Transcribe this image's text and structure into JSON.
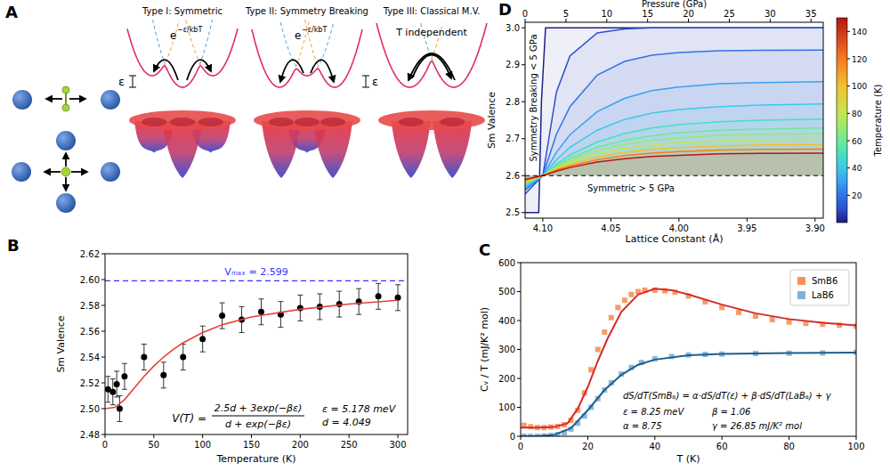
{
  "diagram": {
    "panel": "A",
    "wells": [
      {
        "title": "Type I: Symmetric",
        "energy_label": "ε",
        "rate": {
          "base": "e",
          "exponent": "−ε/kbT"
        }
      },
      {
        "title": "Type II: Symmetry Breaking",
        "energy_label": "ε",
        "rate": {
          "base": "e",
          "exponent": "−ε/kbT"
        }
      },
      {
        "title": "Type III: Classical M.V.",
        "note": "T independent"
      }
    ]
  },
  "chart_data": [
    {
      "panel": "B",
      "type": "scatter",
      "x_label": "Temperature (K)",
      "y_label": "Sm Valence",
      "xlim": [
        0,
        310
      ],
      "ylim": [
        2.48,
        2.62
      ],
      "xticks": [
        0,
        50,
        100,
        150,
        200,
        250,
        300
      ],
      "yticks": [
        2.48,
        {
          "value": 2.5,
          "label": "2.50"
        },
        2.52,
        2.54,
        2.56,
        2.58,
        {
          "value": 2.6,
          "label": "2.60"
        },
        2.62
      ],
      "series": [
        {
          "type": "scatter",
          "marker": "circle",
          "color": "#000000",
          "x": [
            3,
            8,
            12,
            15,
            20,
            40,
            60,
            80,
            100,
            120,
            140,
            160,
            180,
            200,
            220,
            240,
            260,
            280,
            300
          ],
          "values": [
            2.515,
            2.513,
            2.519,
            2.5,
            2.525,
            2.54,
            2.526,
            2.54,
            2.554,
            2.572,
            2.569,
            2.575,
            2.573,
            2.578,
            2.579,
            2.581,
            2.583,
            2.587,
            2.586
          ],
          "errors": [
            0.01,
            0.01,
            0.01,
            0.01,
            0.01,
            0.01,
            0.01,
            0.01,
            0.01,
            0.01,
            0.01,
            0.01,
            0.01,
            0.01,
            0.01,
            0.01,
            0.01,
            0.01,
            0.01
          ]
        },
        {
          "type": "line",
          "color": "#e8413a",
          "x": [
            0,
            10,
            20,
            30,
            40,
            50,
            60,
            70,
            80,
            100,
            120,
            150,
            200,
            250,
            300
          ],
          "values": [
            2.5,
            2.501,
            2.507,
            2.516,
            2.525,
            2.533,
            2.54,
            2.546,
            2.551,
            2.559,
            2.565,
            2.571,
            2.577,
            2.581,
            2.584
          ]
        }
      ],
      "reference_line": {
        "value": 2.599,
        "label": "Vₘₐₓ = 2.599",
        "color": "#3333ff",
        "line_style": "dashed"
      },
      "formula": {
        "lhs": "V(T) =",
        "numerator": "2.5d + 3exp(−βε)",
        "denominator": "d + exp(−βε)"
      },
      "parameters": [
        "ε = 5.178 meV",
        "d = 4.049"
      ]
    },
    {
      "panel": "C",
      "type": "scatter",
      "x_label": "T (K)",
      "y_label": "Cᵥ / T  (mJ/K² mol)",
      "xlim": [
        0,
        100
      ],
      "ylim": [
        0,
        600
      ],
      "xticks": [
        0,
        20,
        40,
        60,
        80,
        100
      ],
      "yticks": [
        0,
        100,
        200,
        300,
        400,
        500,
        600
      ],
      "legend": "upper right",
      "series": [
        {
          "name": "SmB6",
          "type": "scatter",
          "marker": "square",
          "color": "#f5915a",
          "x": [
            1,
            3,
            5,
            7,
            9,
            11,
            13,
            15,
            17,
            19,
            21,
            23,
            25,
            27,
            29,
            31,
            33,
            35,
            37,
            40,
            43,
            46,
            50,
            55,
            60,
            65,
            70,
            75,
            80,
            85,
            90,
            95,
            100
          ],
          "values": [
            38,
            33,
            30,
            30,
            32,
            34,
            40,
            55,
            90,
            150,
            230,
            300,
            360,
            410,
            445,
            470,
            490,
            500,
            505,
            505,
            503,
            498,
            485,
            465,
            445,
            428,
            415,
            403,
            395,
            390,
            387,
            384,
            380
          ]
        },
        {
          "name": "LaB6",
          "type": "scatter",
          "marker": "square",
          "color": "#7fb0d8",
          "x": [
            1,
            3,
            5,
            7,
            9,
            11,
            13,
            15,
            17,
            19,
            21,
            23,
            25,
            27,
            30,
            33,
            36,
            40,
            45,
            50,
            55,
            60,
            70,
            80,
            90,
            100
          ],
          "values": [
            0,
            0,
            0,
            1,
            3,
            6,
            12,
            25,
            45,
            70,
            100,
            130,
            160,
            185,
            215,
            238,
            255,
            268,
            276,
            281,
            283,
            284,
            286,
            287,
            288,
            290
          ]
        },
        {
          "type": "line",
          "color": "#d62b2b",
          "x": [
            0,
            5,
            10,
            14,
            17,
            20,
            23,
            26,
            30,
            35,
            40,
            45,
            50,
            60,
            70,
            80,
            90,
            100
          ],
          "values": [
            30,
            30,
            32,
            45,
            95,
            170,
            260,
            340,
            430,
            490,
            510,
            505,
            490,
            455,
            425,
            405,
            392,
            383
          ]
        },
        {
          "type": "line",
          "color": "#1d5f8a",
          "x": [
            0,
            5,
            10,
            15,
            20,
            25,
            30,
            35,
            40,
            50,
            60,
            80,
            100
          ],
          "values": [
            0,
            0,
            5,
            28,
            90,
            160,
            212,
            247,
            265,
            280,
            285,
            288,
            289
          ]
        }
      ],
      "formula": "dS/dT(SmB₆) = α·dS/dT(ε) + β·dS/dT(LaB₆) + γ",
      "parameters": [
        "ε = 8.25 meV",
        "α = 8.75",
        "β = 1.06",
        "γ = 26.85 mJ/K² mol"
      ]
    },
    {
      "panel": "D",
      "type": "line",
      "x_label": "Lattice Constant (Å)",
      "x2_label": "Pressure (GPa)",
      "y_label": "Sm Valence",
      "xlim": [
        4.113,
        3.894
      ],
      "xticks": [
        {
          "value": 4.1,
          "label": "4.10"
        },
        4.05,
        {
          "value": 4.0,
          "label": "4.00"
        },
        3.95,
        {
          "value": 3.9,
          "label": "3.90"
        }
      ],
      "x2lim": [
        0,
        36.5
      ],
      "x2ticks": [
        0,
        5,
        10,
        15,
        20,
        25,
        30,
        35
      ],
      "ylim": [
        2.485,
        3.015
      ],
      "yticks": [
        2.5,
        2.6,
        2.7,
        2.8,
        2.9,
        {
          "value": 3.0,
          "label": "3.0"
        }
      ],
      "reference_line": {
        "value": 2.6,
        "color": "#000000",
        "line_style": "dashed"
      },
      "annotations": [
        "Symmetry Breaking < 5 GPa",
        "Symmetric > 5 GPa"
      ],
      "colorbar": {
        "label": "Temperature (K)",
        "range": [
          0,
          150
        ],
        "ticks": [
          20,
          40,
          60,
          80,
          100,
          120,
          140
        ]
      },
      "series": [
        {
          "temperature": 1,
          "color": "#20208a",
          "x": [
            4.113,
            4.103,
            4.101,
            4.098,
            3.894
          ],
          "values": [
            2.5,
            2.5,
            2.8,
            3.0,
            3.0
          ]
        },
        {
          "temperature": 10,
          "color": "#2b4fd0",
          "x": [
            4.113,
            4.1,
            4.09,
            4.08,
            4.06,
            4.04,
            4.02,
            4.0,
            3.97,
            3.94,
            3.894
          ],
          "values": [
            2.55,
            2.6,
            2.826,
            2.924,
            2.986,
            2.997,
            3.0,
            3.0,
            3.0,
            3.0,
            3.0
          ]
        },
        {
          "temperature": 20,
          "color": "#2f74e6",
          "x": [
            4.113,
            4.1,
            4.09,
            4.08,
            4.06,
            4.04,
            4.02,
            4.0,
            3.97,
            3.94,
            3.894
          ],
          "values": [
            2.56,
            2.6,
            2.712,
            2.787,
            2.872,
            2.909,
            2.926,
            2.933,
            2.938,
            2.939,
            2.94
          ]
        },
        {
          "temperature": 30,
          "color": "#3aa0f0",
          "x": [
            4.113,
            4.1,
            4.09,
            4.08,
            4.06,
            4.04,
            4.02,
            4.0,
            3.97,
            3.94,
            3.894
          ],
          "values": [
            2.565,
            2.6,
            2.663,
            2.711,
            2.773,
            2.809,
            2.83,
            2.84,
            2.849,
            2.852,
            2.854
          ]
        },
        {
          "temperature": 40,
          "color": "#3cc8e8",
          "x": [
            4.113,
            4.1,
            4.09,
            4.08,
            4.06,
            4.04,
            4.02,
            4.0,
            3.97,
            3.94,
            3.894
          ],
          "values": [
            2.57,
            2.6,
            2.643,
            2.677,
            2.723,
            2.752,
            2.769,
            2.779,
            2.787,
            2.791,
            2.794
          ]
        },
        {
          "temperature": 50,
          "color": "#45e0c0",
          "x": [
            4.113,
            4.1,
            4.09,
            4.08,
            4.06,
            4.04,
            4.02,
            4.0,
            3.97,
            3.94,
            3.894
          ],
          "values": [
            2.575,
            2.6,
            2.631,
            2.656,
            2.691,
            2.714,
            2.729,
            2.738,
            2.746,
            2.75,
            2.753
          ]
        },
        {
          "temperature": 60,
          "color": "#6ee89a",
          "x": [
            4.113,
            4.1,
            4.09,
            4.08,
            4.06,
            4.04,
            4.02,
            4.0,
            3.97,
            3.94,
            3.894
          ],
          "values": [
            2.578,
            2.6,
            2.626,
            2.647,
            2.677,
            2.696,
            2.708,
            2.716,
            2.723,
            2.726,
            2.729
          ]
        },
        {
          "temperature": 70,
          "color": "#9aea6e",
          "x": [
            4.113,
            4.1,
            4.09,
            4.08,
            4.06,
            4.04,
            4.02,
            4.0,
            3.97,
            3.94,
            3.894
          ],
          "values": [
            2.58,
            2.6,
            2.623,
            2.641,
            2.668,
            2.685,
            2.696,
            2.702,
            2.709,
            2.712,
            2.714
          ]
        },
        {
          "temperature": 80,
          "color": "#c4e650",
          "x": [
            4.113,
            4.1,
            4.09,
            4.08,
            4.06,
            4.04,
            4.02,
            4.0,
            3.97,
            3.94,
            3.894
          ],
          "values": [
            2.582,
            2.6,
            2.62,
            2.636,
            2.659,
            2.674,
            2.683,
            2.689,
            2.694,
            2.697,
            2.699
          ]
        },
        {
          "temperature": 100,
          "color": "#f2c030",
          "x": [
            4.113,
            4.1,
            4.09,
            4.08,
            4.06,
            4.04,
            4.02,
            4.0,
            3.97,
            3.94,
            3.894
          ],
          "values": [
            2.585,
            2.6,
            2.617,
            2.631,
            2.65,
            2.663,
            2.671,
            2.676,
            2.68,
            2.683,
            2.684
          ]
        },
        {
          "temperature": 120,
          "color": "#f87a20",
          "x": [
            4.113,
            4.1,
            4.09,
            4.08,
            4.06,
            4.04,
            4.02,
            4.0,
            3.97,
            3.94,
            3.894
          ],
          "values": [
            2.588,
            2.6,
            2.615,
            2.626,
            2.643,
            2.654,
            2.661,
            2.665,
            2.669,
            2.671,
            2.672
          ]
        },
        {
          "temperature": 150,
          "color": "#b81414",
          "x": [
            4.113,
            4.1,
            4.09,
            4.08,
            4.06,
            4.04,
            4.02,
            4.0,
            3.97,
            3.94,
            3.894
          ],
          "values": [
            2.59,
            2.6,
            2.612,
            2.622,
            2.637,
            2.646,
            2.652,
            2.655,
            2.659,
            2.66,
            2.661
          ]
        }
      ]
    }
  ]
}
